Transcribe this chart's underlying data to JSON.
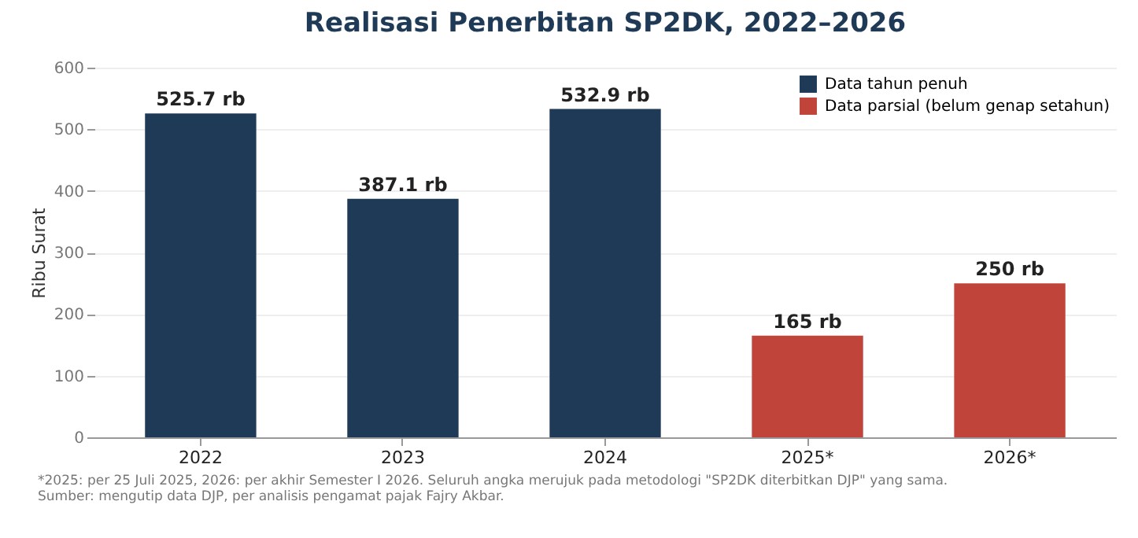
{
  "chart_data": {
    "type": "bar",
    "title": "Realisasi Penerbitan SP2DK, 2022–2026",
    "ylabel": "Ribu Surat",
    "categories": [
      "2022",
      "2023",
      "2024",
      "2025*",
      "2026*"
    ],
    "series": [
      {
        "name": "Data tahun penuh",
        "color": "#1f3a56",
        "values": [
          525.7,
          387.1,
          532.9,
          null,
          null
        ],
        "value_labels": [
          "525.7 rb",
          "387.1 rb",
          "532.9 rb",
          null,
          null
        ]
      },
      {
        "name": "Data parsial (belum genap setahun)",
        "color": "#c0443a",
        "values": [
          null,
          null,
          null,
          165,
          250
        ],
        "value_labels": [
          null,
          null,
          null,
          "165 rb",
          "250 rb"
        ]
      }
    ],
    "ylim": [
      0,
      600
    ],
    "yticks": [
      0,
      100,
      200,
      300,
      400,
      500,
      600
    ],
    "grid": "y",
    "legend": "top right",
    "annotations": [
      "*2025: per 25 Juli 2025, 2026: per akhir Semester I 2026. Seluruh angka merujuk pada metodologi \"SP2DK diterbitkan DJP\" yang sama.",
      "Sumber: mengutip data DJP, per analisis pengamat pajak Fajry Akbar."
    ]
  }
}
